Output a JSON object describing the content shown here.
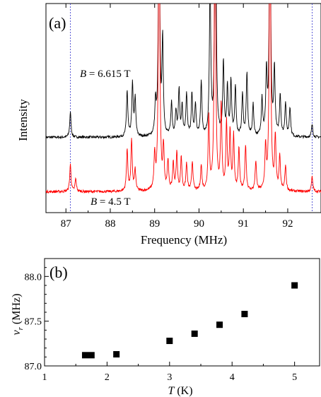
{
  "chart_data": [
    {
      "panel_label": "(a)",
      "type": "line",
      "xlabel": "Frequency (MHz)",
      "ylabel": "Intensity",
      "xlim": [
        86.55,
        92.75
      ],
      "x_ticks": [
        "87",
        "88",
        "89",
        "90",
        "91",
        "92"
      ],
      "x_tick_values": [
        87,
        88,
        89,
        90,
        91,
        92
      ],
      "reference_lines_x": [
        87.1,
        92.55
      ],
      "series": [
        {
          "name": "B = 6.615 T",
          "label_var": "B",
          "label_value": " = 6.615 T",
          "color": "#000000",
          "baseline": 0.36,
          "peaks": [
            {
              "x": 87.1,
              "h": 0.12
            },
            {
              "x": 88.38,
              "h": 0.22
            },
            {
              "x": 88.5,
              "h": 0.25
            },
            {
              "x": 88.56,
              "h": 0.18
            },
            {
              "x": 89.02,
              "h": 0.15
            },
            {
              "x": 89.1,
              "h": 1.2
            },
            {
              "x": 89.18,
              "h": 0.45
            },
            {
              "x": 89.38,
              "h": 0.16
            },
            {
              "x": 89.48,
              "h": 0.12
            },
            {
              "x": 89.55,
              "h": 0.22
            },
            {
              "x": 89.62,
              "h": 0.14
            },
            {
              "x": 89.72,
              "h": 0.2
            },
            {
              "x": 89.84,
              "h": 0.2
            },
            {
              "x": 89.92,
              "h": 0.15
            },
            {
              "x": 90.05,
              "h": 0.26
            },
            {
              "x": 90.25,
              "h": 0.74
            },
            {
              "x": 90.37,
              "h": 1.4
            },
            {
              "x": 90.55,
              "h": 0.35
            },
            {
              "x": 90.64,
              "h": 0.23
            },
            {
              "x": 90.72,
              "h": 0.26
            },
            {
              "x": 90.82,
              "h": 0.24
            },
            {
              "x": 90.98,
              "h": 0.2
            },
            {
              "x": 91.08,
              "h": 0.3
            },
            {
              "x": 91.22,
              "h": 0.15
            },
            {
              "x": 91.42,
              "h": 0.18
            },
            {
              "x": 91.52,
              "h": 0.3
            },
            {
              "x": 91.6,
              "h": 1.2
            },
            {
              "x": 91.7,
              "h": 0.32
            },
            {
              "x": 91.83,
              "h": 0.2
            },
            {
              "x": 91.95,
              "h": 0.16
            },
            {
              "x": 92.05,
              "h": 0.14
            },
            {
              "x": 92.55,
              "h": 0.06
            }
          ]
        },
        {
          "name": "B = 4.5 T",
          "label_var": "B",
          "label_value": " = 4.5 T",
          "color": "#ff0000",
          "baseline": 0.1,
          "peaks": [
            {
              "x": 87.1,
              "h": 0.13
            },
            {
              "x": 87.22,
              "h": 0.06
            },
            {
              "x": 88.38,
              "h": 0.2
            },
            {
              "x": 88.48,
              "h": 0.24
            },
            {
              "x": 88.56,
              "h": 0.1
            },
            {
              "x": 89.0,
              "h": 0.16
            },
            {
              "x": 89.1,
              "h": 1.5
            },
            {
              "x": 89.2,
              "h": 0.2
            },
            {
              "x": 89.3,
              "h": 0.14
            },
            {
              "x": 89.42,
              "h": 0.13
            },
            {
              "x": 89.5,
              "h": 0.18
            },
            {
              "x": 89.6,
              "h": 0.16
            },
            {
              "x": 89.72,
              "h": 0.13
            },
            {
              "x": 89.85,
              "h": 0.14
            },
            {
              "x": 90.05,
              "h": 0.12
            },
            {
              "x": 90.22,
              "h": 0.35
            },
            {
              "x": 90.36,
              "h": 1.5
            },
            {
              "x": 90.5,
              "h": 0.4
            },
            {
              "x": 90.62,
              "h": 0.32
            },
            {
              "x": 90.7,
              "h": 0.28
            },
            {
              "x": 90.78,
              "h": 0.26
            },
            {
              "x": 90.9,
              "h": 0.2
            },
            {
              "x": 91.05,
              "h": 0.22
            },
            {
              "x": 91.28,
              "h": 0.14
            },
            {
              "x": 91.5,
              "h": 0.2
            },
            {
              "x": 91.6,
              "h": 1.5
            },
            {
              "x": 91.72,
              "h": 0.25
            },
            {
              "x": 91.82,
              "h": 0.16
            },
            {
              "x": 91.95,
              "h": 0.12
            },
            {
              "x": 92.55,
              "h": 0.07
            }
          ]
        }
      ]
    },
    {
      "panel_label": "(b)",
      "type": "scatter",
      "xlabel_var": "T",
      "xlabel_unit": " (K)",
      "ylabel_var": "ν",
      "ylabel_sub": "r",
      "ylabel_unit": " (MHz)",
      "xlim": [
        1.0,
        5.4
      ],
      "ylim": [
        87.0,
        88.2
      ],
      "x_ticks": [
        "1",
        "2",
        "3",
        "4",
        "5"
      ],
      "x_tick_values": [
        1,
        2,
        3,
        4,
        5
      ],
      "y_ticks": [
        "87.0",
        "87.5",
        "88.0"
      ],
      "y_tick_values": [
        87.0,
        87.5,
        88.0
      ],
      "x": [
        1.65,
        1.75,
        2.15,
        3.0,
        3.4,
        3.8,
        4.2,
        5.0
      ],
      "y": [
        87.12,
        87.12,
        87.13,
        87.28,
        87.36,
        87.46,
        87.58,
        87.9
      ]
    }
  ]
}
